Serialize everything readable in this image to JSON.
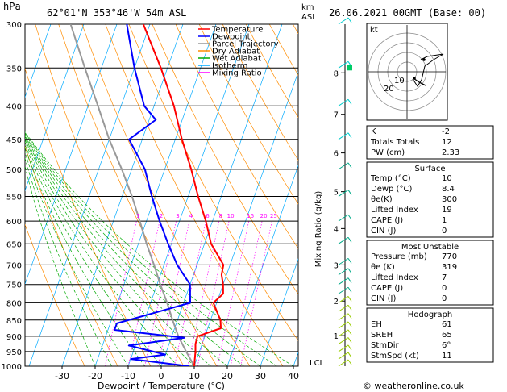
{
  "chart_data": {
    "type": "line",
    "title_left": "62°01'N  353°46'W  54m  ASL",
    "title_right": "26.06.2021  00GMT  (Base: 00)",
    "y_unit": "hPa",
    "km_unit": "km\nASL",
    "xlabel": "Dewpoint / Temperature (°C)",
    "mixing_label": "Mixing Ratio (g/kg)",
    "lcl_label": "LCL",
    "copyright": "© weatheronline.co.uk",
    "pressure_levels": [
      300,
      350,
      400,
      450,
      500,
      550,
      600,
      650,
      700,
      750,
      800,
      850,
      900,
      950,
      1000
    ],
    "x_ticks": [
      -30,
      -20,
      -10,
      0,
      10,
      20,
      30,
      40
    ],
    "km_ticks": [
      {
        "km": "8",
        "p": 356
      },
      {
        "km": "7",
        "p": 412
      },
      {
        "km": "6",
        "p": 472
      },
      {
        "km": "5",
        "p": 541
      },
      {
        "km": "4",
        "p": 616
      },
      {
        "km": "3",
        "p": 700
      },
      {
        "km": "2",
        "p": 795
      },
      {
        "km": "1",
        "p": 898
      }
    ],
    "mixing_ratios": [
      "1",
      "2",
      "3",
      "4",
      "6",
      "8",
      "10",
      "15",
      "20",
      "25"
    ],
    "legend": [
      {
        "name": "Temperature",
        "color": "#ff0000"
      },
      {
        "name": "Dewpoint",
        "color": "#0000ff"
      },
      {
        "name": "Parcel Trajectory",
        "color": "#999999"
      },
      {
        "name": "Dry Adiabat",
        "color": "#ff8c00"
      },
      {
        "name": "Wet Adiabat",
        "color": "#00aa00"
      },
      {
        "name": "Isotherm",
        "color": "#00aaff"
      },
      {
        "name": "Mixing Ratio",
        "color": "#ff00ff"
      }
    ],
    "temperature": [
      {
        "p": 1000,
        "t": 10.0
      },
      {
        "p": 975,
        "t": 9.4
      },
      {
        "p": 950,
        "t": 8.8
      },
      {
        "p": 925,
        "t": 8.0
      },
      {
        "p": 900,
        "t": 7.8
      },
      {
        "p": 875,
        "t": 14.0
      },
      {
        "p": 850,
        "t": 13.0
      },
      {
        "p": 825,
        "t": 11.0
      },
      {
        "p": 800,
        "t": 9.0
      },
      {
        "p": 775,
        "t": 11.0
      },
      {
        "p": 750,
        "t": 10.0
      },
      {
        "p": 725,
        "t": 8.5
      },
      {
        "p": 700,
        "t": 8.0
      },
      {
        "p": 650,
        "t": 2.0
      },
      {
        "p": 600,
        "t": -2.0
      },
      {
        "p": 550,
        "t": -7.0
      },
      {
        "p": 500,
        "t": -12.0
      },
      {
        "p": 450,
        "t": -18.0
      },
      {
        "p": 400,
        "t": -24.0
      },
      {
        "p": 350,
        "t": -32.0
      },
      {
        "p": 300,
        "t": -42.0
      }
    ],
    "dewpoint": [
      {
        "p": 1000,
        "t": 8.4
      },
      {
        "p": 975,
        "t": -10.0
      },
      {
        "p": 960,
        "t": 0.0
      },
      {
        "p": 930,
        "t": -12.0
      },
      {
        "p": 905,
        "t": 4.0
      },
      {
        "p": 880,
        "t": -18.0
      },
      {
        "p": 860,
        "t": -18.0
      },
      {
        "p": 800,
        "t": 2.0
      },
      {
        "p": 750,
        "t": 0.0
      },
      {
        "p": 700,
        "t": -6.0
      },
      {
        "p": 650,
        "t": -11.0
      },
      {
        "p": 600,
        "t": -16.0
      },
      {
        "p": 550,
        "t": -21.0
      },
      {
        "p": 500,
        "t": -26.0
      },
      {
        "p": 450,
        "t": -34.0
      },
      {
        "p": 420,
        "t": -28.0
      },
      {
        "p": 400,
        "t": -33.0
      },
      {
        "p": 350,
        "t": -40.0
      },
      {
        "p": 300,
        "t": -47.0
      }
    ],
    "parcel": [
      {
        "p": 1000,
        "t": 10.0
      },
      {
        "p": 950,
        "t": 6.0
      },
      {
        "p": 900,
        "t": 2.0
      },
      {
        "p": 850,
        "t": -1.5
      },
      {
        "p": 800,
        "t": -5.0
      },
      {
        "p": 750,
        "t": -9.0
      },
      {
        "p": 700,
        "t": -13.0
      },
      {
        "p": 650,
        "t": -17.5
      },
      {
        "p": 600,
        "t": -22.0
      },
      {
        "p": 550,
        "t": -27.0
      },
      {
        "p": 500,
        "t": -33.0
      },
      {
        "p": 450,
        "t": -40.0
      },
      {
        "p": 400,
        "t": -47.0
      },
      {
        "p": 350,
        "t": -55.0
      },
      {
        "p": 300,
        "t": -64.0
      }
    ],
    "hodograph": {
      "label": "kt",
      "rings": [
        "10",
        "20",
        "30",
        "40"
      ],
      "rings_shown": [
        "10",
        "20"
      ]
    },
    "index_table": {
      "top": [
        {
          "label": "K",
          "value": "-2"
        },
        {
          "label": "Totals Totals",
          "value": "12"
        },
        {
          "label": "PW (cm)",
          "value": "2.33"
        }
      ],
      "surface": {
        "title": "Surface",
        "rows": [
          {
            "label": "Temp (°C)",
            "value": "10"
          },
          {
            "label": "Dewp (°C)",
            "value": "8.4"
          },
          {
            "label": "θe(K)",
            "value": "300"
          },
          {
            "label": "Lifted Index",
            "value": "19"
          },
          {
            "label": "CAPE (J)",
            "value": "1"
          },
          {
            "label": "CIN (J)",
            "value": "0"
          }
        ]
      },
      "most_unstable": {
        "title": "Most Unstable",
        "rows": [
          {
            "label": "Pressure (mb)",
            "value": "770"
          },
          {
            "label": "θe (K)",
            "value": "319"
          },
          {
            "label": "Lifted Index",
            "value": "7"
          },
          {
            "label": "CAPE (J)",
            "value": "0"
          },
          {
            "label": "CIN (J)",
            "value": "0"
          }
        ]
      },
      "hodograph": {
        "title": "Hodograph",
        "rows": [
          {
            "label": "EH",
            "value": "61"
          },
          {
            "label": "SREH",
            "value": "65"
          },
          {
            "label": "StmDir",
            "value": "6°"
          },
          {
            "label": "StmSpd (kt)",
            "value": "11"
          }
        ]
      }
    }
  }
}
